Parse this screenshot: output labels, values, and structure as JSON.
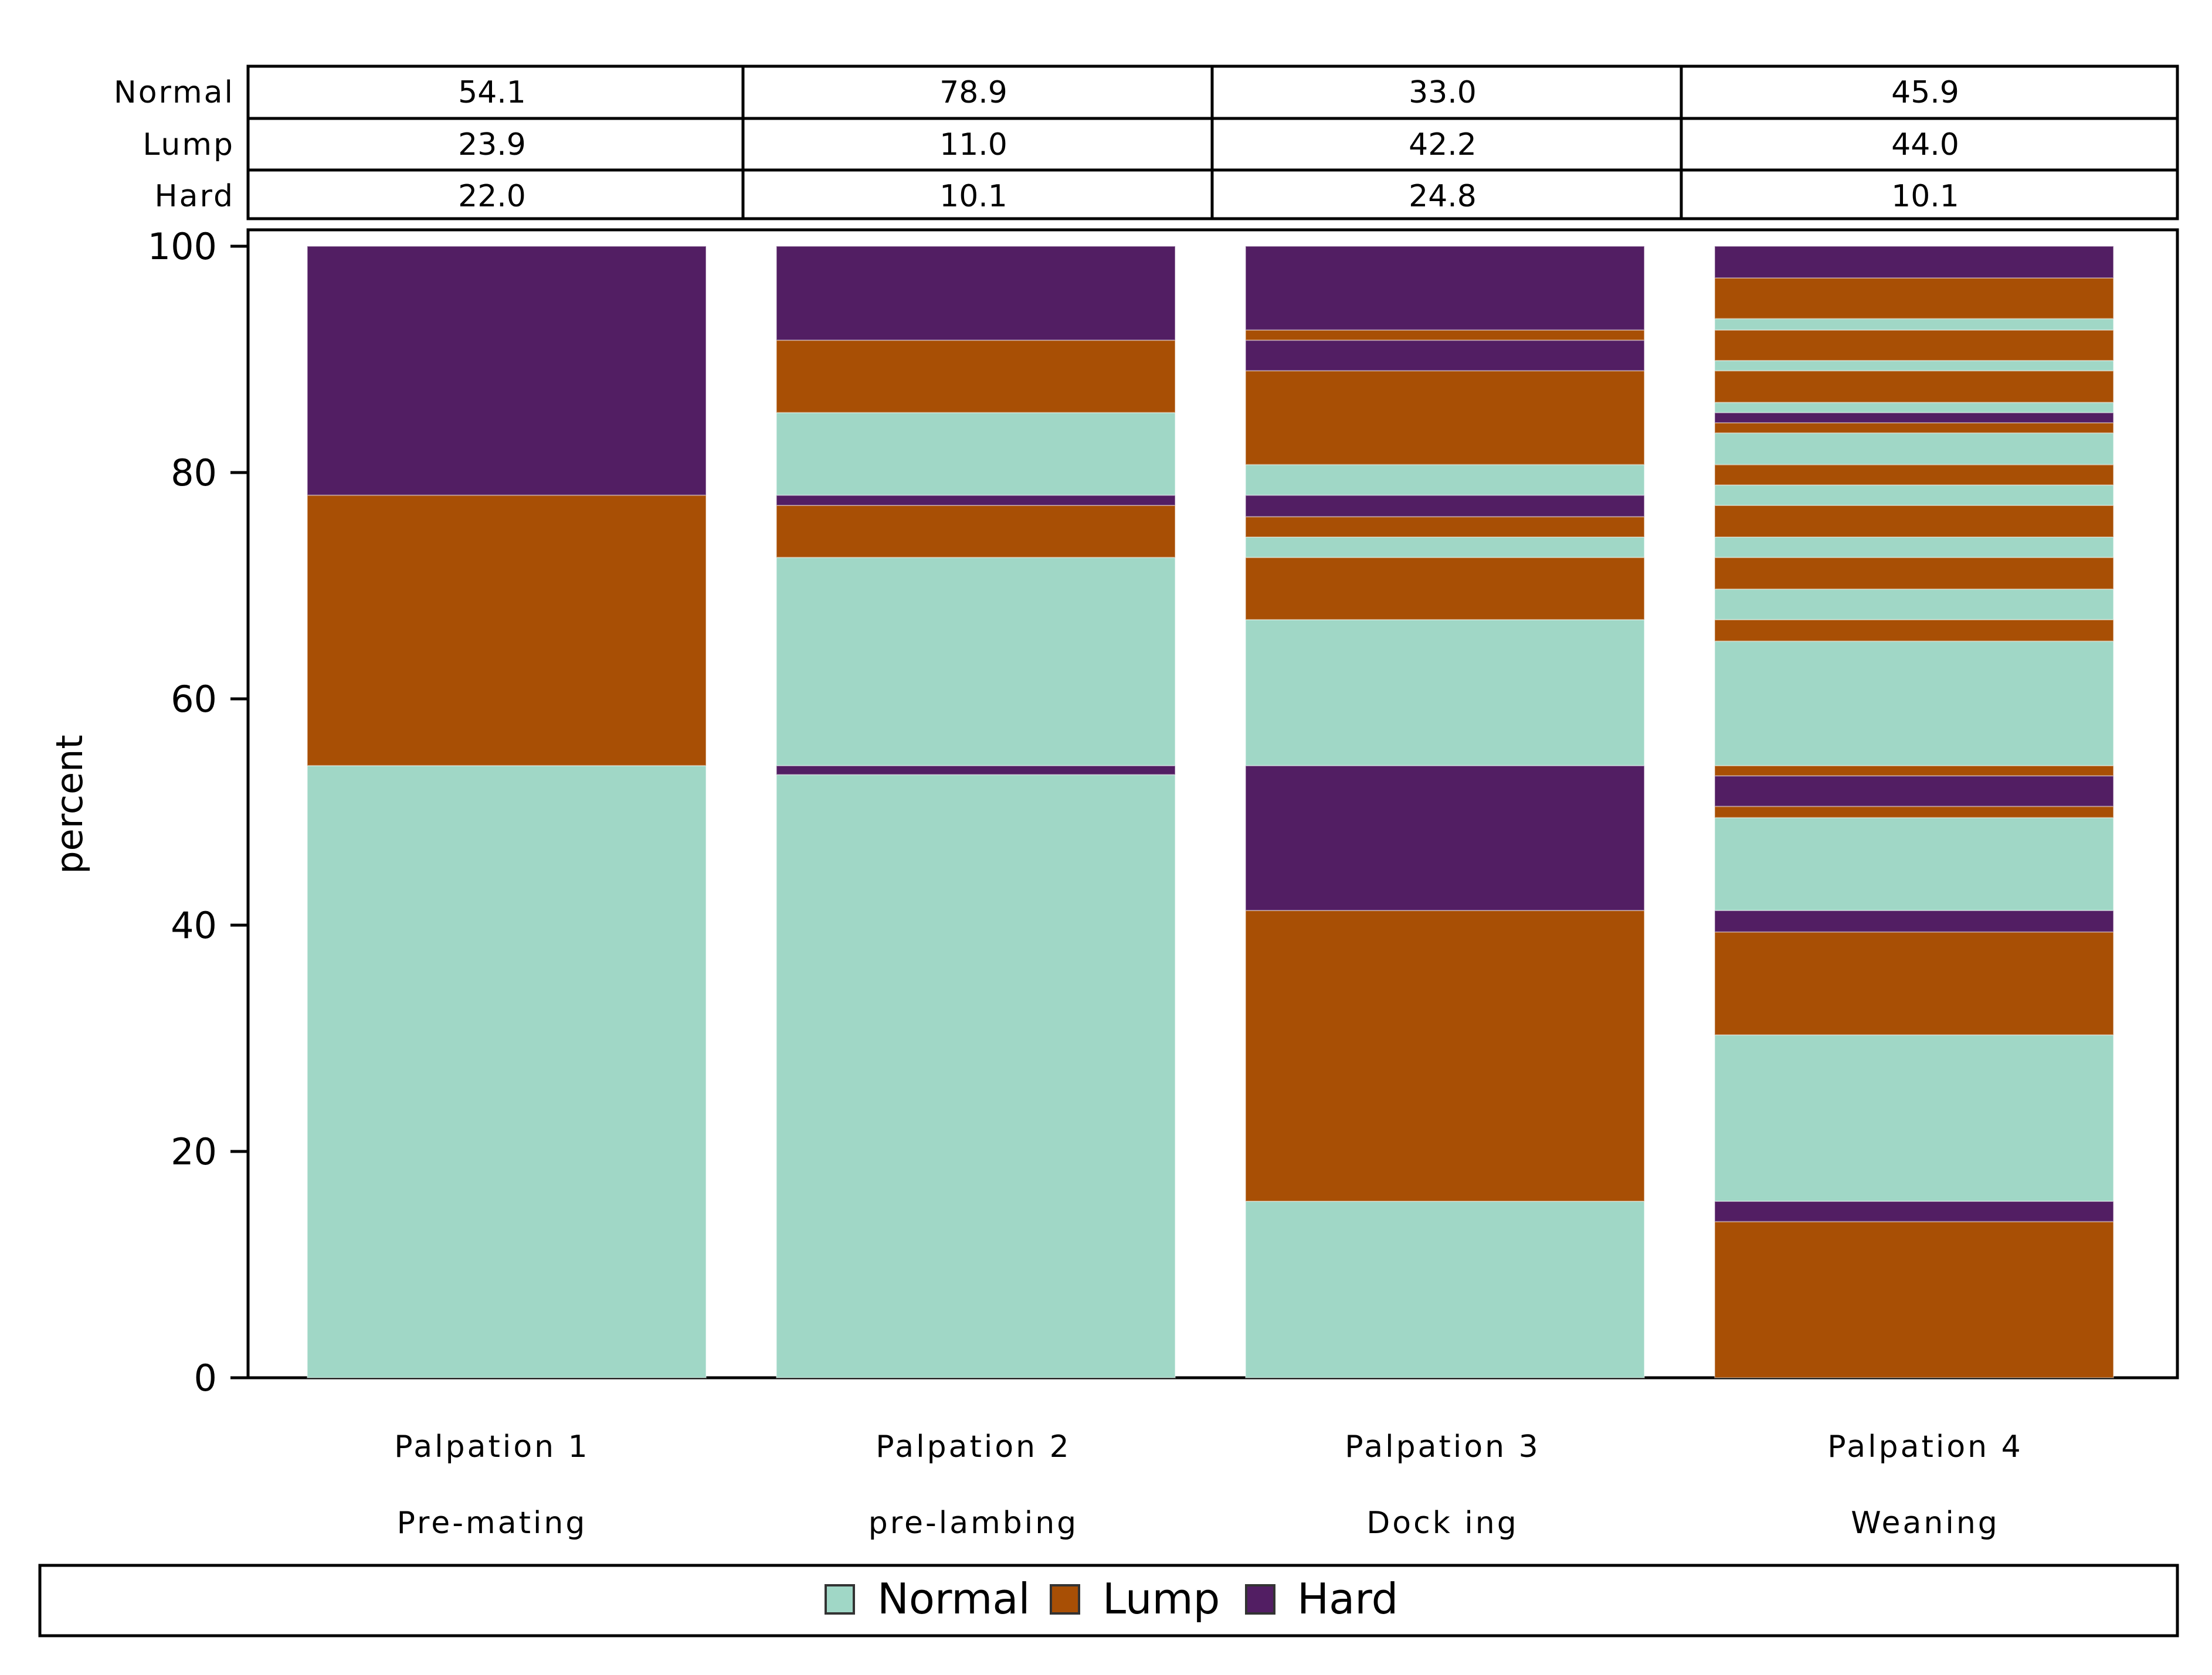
{
  "chart_data": {
    "type": "bar",
    "stacked": true,
    "ylabel": "percent",
    "ylim": [
      0,
      100
    ],
    "yticks": [
      0,
      20,
      40,
      60,
      80,
      100
    ],
    "categories": [
      {
        "line1": "Palpation 1",
        "line2": "Pre-mating"
      },
      {
        "line1": "Palpation 2",
        "line2": "pre-lambing"
      },
      {
        "line1": "Palpation 3",
        "line2": "Dock ing"
      },
      {
        "line1": "Palpation 4",
        "line2": "Weaning"
      }
    ],
    "summary_table": {
      "rows": [
        {
          "label": "Normal",
          "values": [
            "54.1",
            "78.9",
            "33.0",
            "45.9"
          ]
        },
        {
          "label": "Lump",
          "values": [
            "23.9",
            "11.0",
            "42.2",
            "44.0"
          ]
        },
        {
          "label": "Hard",
          "values": [
            "22.0",
            "10.1",
            "24.8",
            "10.1"
          ]
        }
      ]
    },
    "legend": [
      {
        "name": "Normal",
        "color": "#a0d7c6"
      },
      {
        "name": "Lump",
        "color": "#a84f05"
      },
      {
        "name": "Hard",
        "color": "#521e63"
      }
    ],
    "colors": {
      "Normal": "#a0d7c6",
      "Lump": "#a84f05",
      "Hard": "#521e63"
    },
    "segments": [
      [
        {
          "cls": "Normal",
          "from": 0,
          "to": 54.1
        },
        {
          "cls": "Lump",
          "from": 54.1,
          "to": 78.0
        },
        {
          "cls": "Hard",
          "from": 78.0,
          "to": 100
        }
      ],
      [
        {
          "cls": "Normal",
          "from": 0,
          "to": 53.3
        },
        {
          "cls": "Hard",
          "from": 53.3,
          "to": 54.1
        },
        {
          "cls": "Normal",
          "from": 54.1,
          "to": 72.5
        },
        {
          "cls": "Lump",
          "from": 72.5,
          "to": 77.1
        },
        {
          "cls": "Hard",
          "from": 77.1,
          "to": 78.0
        },
        {
          "cls": "Normal",
          "from": 78.0,
          "to": 85.3
        },
        {
          "cls": "Lump",
          "from": 85.3,
          "to": 91.7
        },
        {
          "cls": "Hard",
          "from": 91.7,
          "to": 100
        }
      ],
      [
        {
          "cls": "Normal",
          "from": 0,
          "to": 15.6
        },
        {
          "cls": "Lump",
          "from": 15.6,
          "to": 41.3
        },
        {
          "cls": "Hard",
          "from": 41.3,
          "to": 54.1
        },
        {
          "cls": "Normal",
          "from": 54.1,
          "to": 67.0
        },
        {
          "cls": "Lump",
          "from": 67.0,
          "to": 72.5
        },
        {
          "cls": "Normal",
          "from": 72.5,
          "to": 74.3
        },
        {
          "cls": "Lump",
          "from": 74.3,
          "to": 76.1
        },
        {
          "cls": "Hard",
          "from": 76.1,
          "to": 78.0
        },
        {
          "cls": "Normal",
          "from": 78.0,
          "to": 80.7
        },
        {
          "cls": "Lump",
          "from": 80.7,
          "to": 89.0
        },
        {
          "cls": "Hard",
          "from": 89.0,
          "to": 91.7
        },
        {
          "cls": "Lump",
          "from": 91.7,
          "to": 92.6
        },
        {
          "cls": "Hard",
          "from": 92.6,
          "to": 100
        }
      ],
      [
        {
          "cls": "Lump",
          "from": 0,
          "to": 13.8
        },
        {
          "cls": "Hard",
          "from": 13.8,
          "to": 15.6
        },
        {
          "cls": "Normal",
          "from": 15.6,
          "to": 30.3
        },
        {
          "cls": "Lump",
          "from": 30.3,
          "to": 39.4
        },
        {
          "cls": "Hard",
          "from": 39.4,
          "to": 41.3
        },
        {
          "cls": "Normal",
          "from": 41.3,
          "to": 49.5
        },
        {
          "cls": "Lump",
          "from": 49.5,
          "to": 50.5
        },
        {
          "cls": "Hard",
          "from": 50.5,
          "to": 53.2
        },
        {
          "cls": "Lump",
          "from": 53.2,
          "to": 54.1
        },
        {
          "cls": "Normal",
          "from": 54.1,
          "to": 65.1
        },
        {
          "cls": "Lump",
          "from": 65.1,
          "to": 67.0
        },
        {
          "cls": "Normal",
          "from": 67.0,
          "to": 69.7
        },
        {
          "cls": "Lump",
          "from": 69.7,
          "to": 72.5
        },
        {
          "cls": "Normal",
          "from": 72.5,
          "to": 74.3
        },
        {
          "cls": "Lump",
          "from": 74.3,
          "to": 77.1
        },
        {
          "cls": "Normal",
          "from": 77.1,
          "to": 78.9
        },
        {
          "cls": "Lump",
          "from": 78.9,
          "to": 80.7
        },
        {
          "cls": "Normal",
          "from": 80.7,
          "to": 83.5
        },
        {
          "cls": "Lump",
          "from": 83.5,
          "to": 84.4
        },
        {
          "cls": "Hard",
          "from": 84.4,
          "to": 85.3
        },
        {
          "cls": "Normal",
          "from": 85.3,
          "to": 86.2
        },
        {
          "cls": "Lump",
          "from": 86.2,
          "to": 89.0
        },
        {
          "cls": "Normal",
          "from": 89.0,
          "to": 89.9
        },
        {
          "cls": "Lump",
          "from": 89.9,
          "to": 92.6
        },
        {
          "cls": "Normal",
          "from": 92.6,
          "to": 93.6
        },
        {
          "cls": "Lump",
          "from": 93.6,
          "to": 97.2
        },
        {
          "cls": "Hard",
          "from": 97.2,
          "to": 100
        }
      ]
    ]
  }
}
